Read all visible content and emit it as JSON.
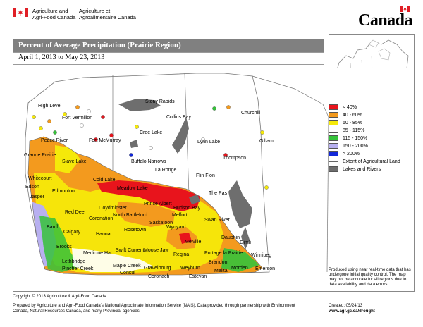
{
  "header": {
    "dept_en_line1": "Agriculture and",
    "dept_en_line2": "Agri-Food Canada",
    "dept_fr_line1": "Agriculture et",
    "dept_fr_line2": "Agroalimentaire Canada",
    "wordmark": "Canada"
  },
  "title": "Percent of Average Precipitation (Prairie Region)",
  "date_range": "April 1, 2013 to May 23, 2013",
  "legend": {
    "classes": [
      {
        "label": "< 40%",
        "color": "#e8141c"
      },
      {
        "label": "40 - 60%",
        "color": "#f39a1e"
      },
      {
        "label": "60 - 85%",
        "color": "#f5e90a"
      },
      {
        "label": "85 - 115%",
        "color": "#ffffff"
      },
      {
        "label": "115 - 150%",
        "color": "#35c23a"
      },
      {
        "label": "150 - 200%",
        "color": "#b8b0f0"
      },
      {
        "label": "> 200%",
        "color": "#1228d8"
      }
    ],
    "extent_label": "Extent of Agricultural Land",
    "lakes_label": "Lakes and Rivers",
    "lakes_color": "#6e6e6e"
  },
  "disclaimer": "Produced using near real-time data that has undergone initial quality control. The map may not be accurate for all regions due to data availability and data errors.",
  "cities": [
    {
      "name": "High Level"
    },
    {
      "name": "Fort Vermilion"
    },
    {
      "name": "Stony Rapids"
    },
    {
      "name": "Collins Bay"
    },
    {
      "name": "Churchill"
    },
    {
      "name": "Cree Lake"
    },
    {
      "name": "Fort McMurray"
    },
    {
      "name": "Peace River"
    },
    {
      "name": "Gillam"
    },
    {
      "name": "Lynn Lake"
    },
    {
      "name": "Thompson"
    },
    {
      "name": "Grande Prairie"
    },
    {
      "name": "Buffalo Narrows"
    },
    {
      "name": "Slave Lake"
    },
    {
      "name": "La Ronge"
    },
    {
      "name": "Flin Flon"
    },
    {
      "name": "Whitecourt"
    },
    {
      "name": "Cold Lake"
    },
    {
      "name": "Edson"
    },
    {
      "name": "Edmonton"
    },
    {
      "name": "Meadow Lake"
    },
    {
      "name": "The Pas"
    },
    {
      "name": "Jasper"
    },
    {
      "name": "Lloydminster"
    },
    {
      "name": "Prince Albert"
    },
    {
      "name": "Hudson Bay"
    },
    {
      "name": "Red Deer"
    },
    {
      "name": "North Battleford"
    },
    {
      "name": "Melfort"
    },
    {
      "name": "Swan River"
    },
    {
      "name": "Banff"
    },
    {
      "name": "Coronation"
    },
    {
      "name": "Rosetown"
    },
    {
      "name": "Saskatoon"
    },
    {
      "name": "Wynyard"
    },
    {
      "name": "Calgary"
    },
    {
      "name": "Hanna"
    },
    {
      "name": "Dauphin"
    },
    {
      "name": "Brooks"
    },
    {
      "name": "Medicine Hat"
    },
    {
      "name": "Swift Current"
    },
    {
      "name": "Moose Jaw"
    },
    {
      "name": "Melville"
    },
    {
      "name": "Regina"
    },
    {
      "name": "Gimli"
    },
    {
      "name": "Portage la Prairie"
    },
    {
      "name": "Winnipeg"
    },
    {
      "name": "Lethbridge"
    },
    {
      "name": "Pincher Creek"
    },
    {
      "name": "Maple Creek"
    },
    {
      "name": "Gravelbourg"
    },
    {
      "name": "Weyburn"
    },
    {
      "name": "Brandon"
    },
    {
      "name": "Consul"
    },
    {
      "name": "Coronach"
    },
    {
      "name": "Estevan"
    },
    {
      "name": "Melita"
    },
    {
      "name": "Morden"
    },
    {
      "name": "Emerson"
    }
  ],
  "footer": {
    "copyright": "Copyright © 2013 Agriculture & Agri-Food Canada",
    "prepared": "Prepared by Agriculture and Agri-Food Canada's National Agroclimate Information Service (NAIS). Data provided through partnership with Environment Canada, Natural Resources Canada, and many Provincial agencies.",
    "created": "Created: 05/24/13",
    "website": "www.agr.gc.ca/drought"
  }
}
